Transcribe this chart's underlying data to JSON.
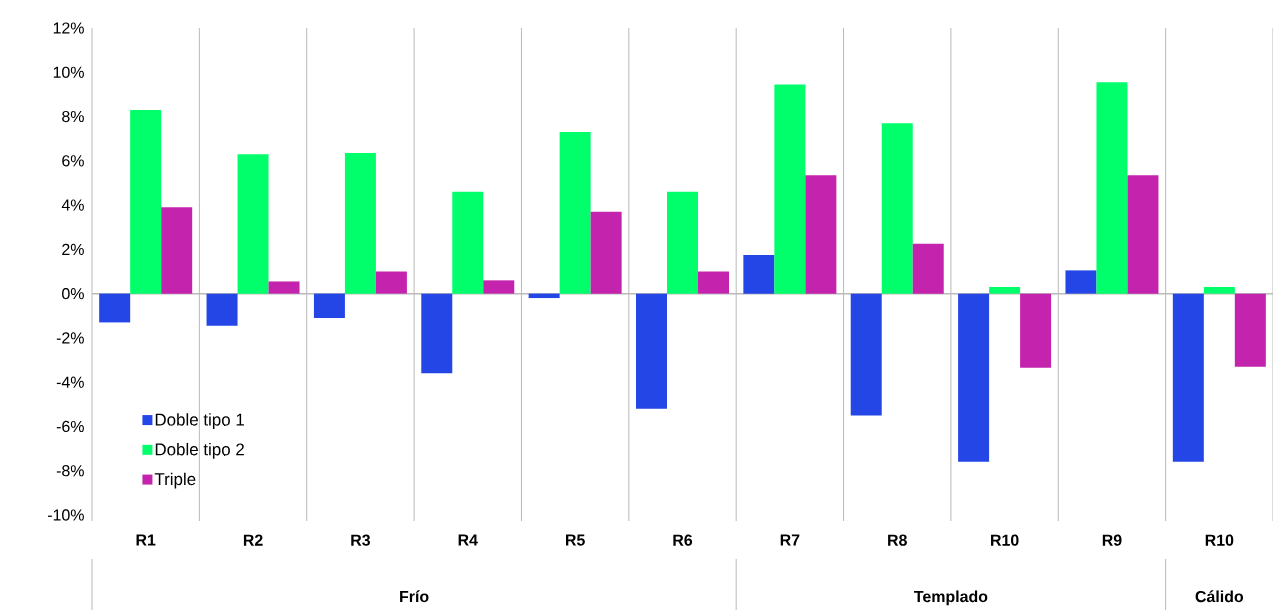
{
  "chart_data": {
    "type": "bar",
    "categories": [
      "R1",
      "R2",
      "R3",
      "R4",
      "R5",
      "R6",
      "R7",
      "R8",
      "R10",
      "R9",
      "R10"
    ],
    "series": [
      {
        "name": "Doble tipo 1",
        "color": "#2446e6",
        "values": [
          -1.3,
          -1.45,
          -1.1,
          -3.6,
          -0.2,
          -5.2,
          1.75,
          -5.5,
          -7.6,
          1.05,
          -7.6
        ]
      },
      {
        "name": "Doble tipo 2",
        "color": "#00ff6a",
        "values": [
          8.3,
          6.3,
          6.35,
          4.6,
          7.3,
          4.6,
          9.45,
          7.7,
          0.3,
          9.55,
          0.3
        ]
      },
      {
        "name": "Triple",
        "color": "#c424ad",
        "values": [
          3.9,
          0.55,
          1.0,
          0.6,
          3.7,
          1.0,
          5.35,
          2.25,
          -3.35,
          5.35,
          -3.3
        ]
      }
    ],
    "ylim": [
      -10,
      12
    ],
    "yticks": [
      {
        "value": -10,
        "label": "-10%"
      },
      {
        "value": -8,
        "label": "-8%"
      },
      {
        "value": -6,
        "label": "-6%"
      },
      {
        "value": -4,
        "label": "-4%"
      },
      {
        "value": -2,
        "label": "-2%"
      },
      {
        "value": 0,
        "label": "0%"
      },
      {
        "value": 2,
        "label": "2%"
      },
      {
        "value": 4,
        "label": "4%"
      },
      {
        "value": 6,
        "label": "6%"
      },
      {
        "value": 8,
        "label": "8%"
      },
      {
        "value": 10,
        "label": "10%"
      },
      {
        "value": 12,
        "label": "12%"
      }
    ],
    "annotations": [
      "Frío",
      "Templado",
      "Cálido"
    ],
    "grid": "x",
    "legend": "bottom left"
  }
}
